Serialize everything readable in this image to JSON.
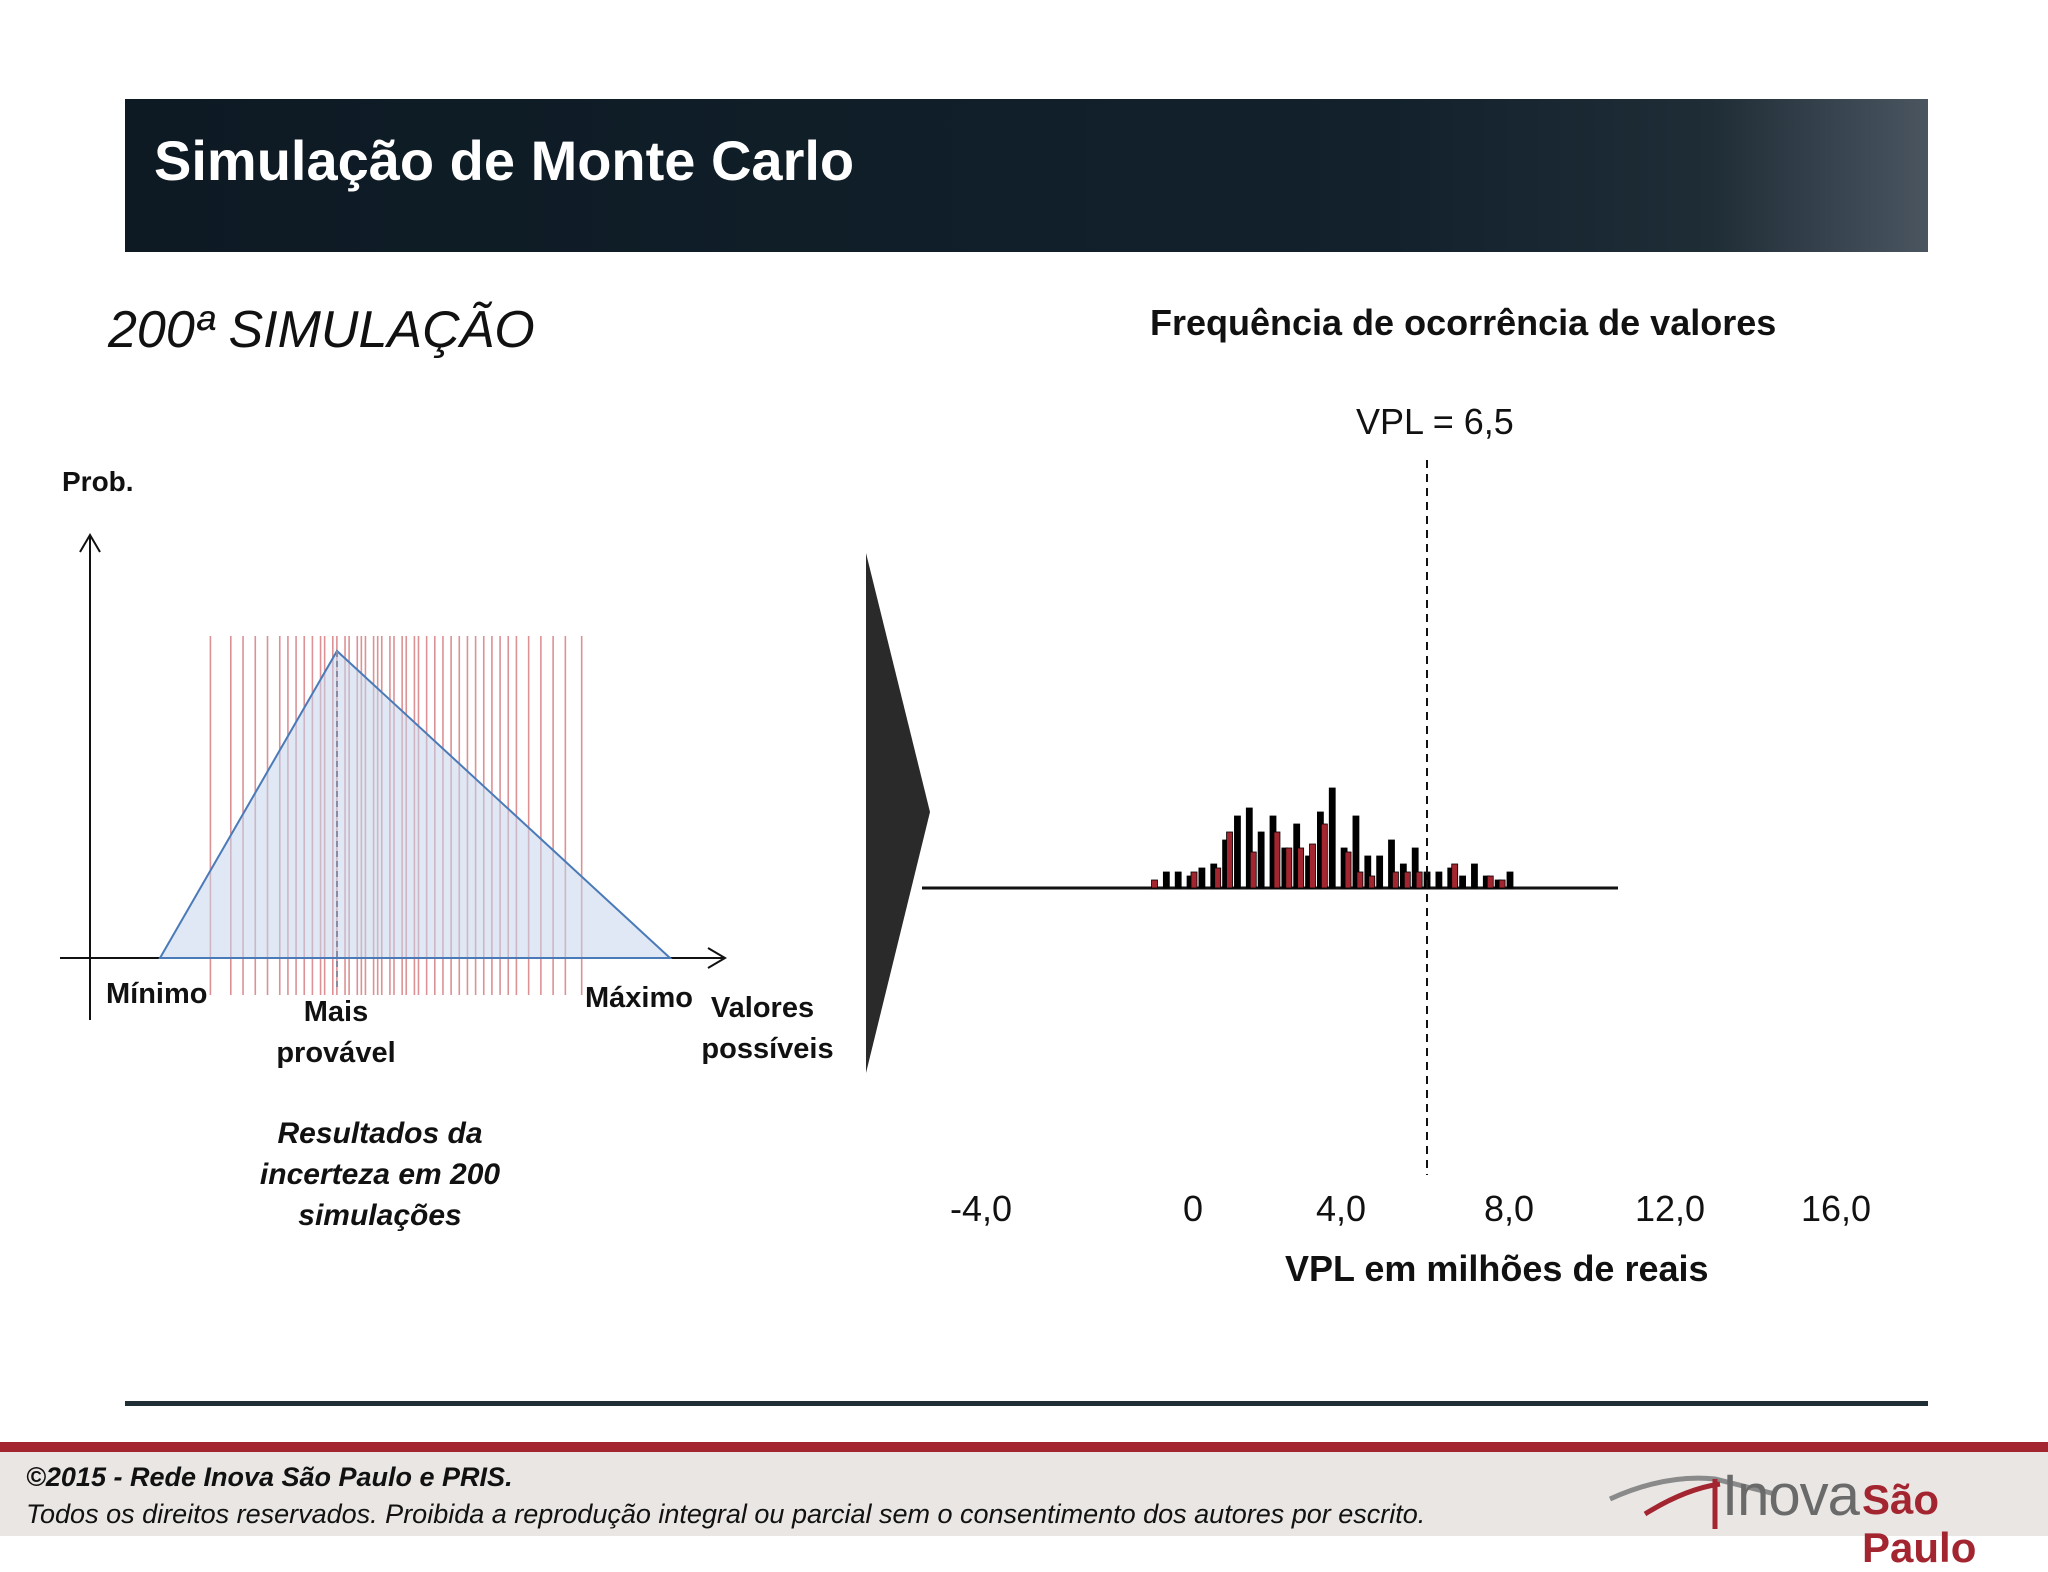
{
  "header": {
    "title": "Simulação de Monte Carlo"
  },
  "left_panel": {
    "heading": "200ª SIMULAÇÃO",
    "y_label": "Prob.",
    "min_label": "Mínimo",
    "mode_label_1": "Mais",
    "mode_label_2": "provável",
    "max_label": "Máximo",
    "x_label_1": "Valores",
    "x_label_2": "possíveis",
    "caption_1": "Resultados da",
    "caption_2": "incerteza em 200",
    "caption_3": "simulações"
  },
  "histogram": {
    "title": "Frequência de ocorrência de valores",
    "marker_label": "VPL = 6,5",
    "x_title": "VPL em milhões de reais",
    "x_ticks": [
      "-4,0",
      "0",
      "4,0",
      "8,0",
      "12,0",
      "16,0"
    ]
  },
  "chart_data": {
    "type": "bar",
    "title": "Frequência de ocorrência de valores",
    "xlabel": "VPL em milhões de reais",
    "ylabel": "",
    "x_ticks": [
      -4,
      0,
      4,
      8,
      12,
      16
    ],
    "marker": {
      "label": "VPL = 6,5",
      "x": 6.5
    },
    "series": [
      {
        "color": "#000000",
        "x": [
          -0.7,
          -0.4,
          -0.1,
          0.2,
          0.5,
          0.8,
          1.1,
          1.4,
          1.7,
          2.0,
          2.3,
          2.6,
          2.9,
          3.2,
          3.5,
          3.8,
          4.1,
          4.4,
          4.7,
          5.0,
          5.3,
          5.6,
          5.9,
          6.2,
          6.5,
          6.8,
          7.1,
          7.4,
          7.7,
          8.0
        ],
        "freq": [
          4,
          4,
          3,
          5,
          6,
          12,
          18,
          20,
          14,
          18,
          10,
          16,
          8,
          19,
          25,
          10,
          18,
          8,
          8,
          12,
          6,
          10,
          4,
          4,
          5,
          3,
          6,
          3,
          2,
          4
        ]
      },
      {
        "color": "#a3252f",
        "x": [
          -1.0,
          0.0,
          0.6,
          0.9,
          1.5,
          2.1,
          2.4,
          2.7,
          3.0,
          3.3,
          3.9,
          4.2,
          4.5,
          5.1,
          5.4,
          5.7,
          6.6,
          7.5,
          7.8
        ],
        "freq": [
          2,
          4,
          5,
          14,
          9,
          14,
          10,
          10,
          11,
          16,
          9,
          4,
          3,
          4,
          4,
          4,
          6,
          3,
          2
        ]
      }
    ]
  },
  "triangle_samples": {
    "min": 0,
    "mode": 0.42,
    "max": 1,
    "samples": [
      0.05,
      0.1,
      0.13,
      0.16,
      0.19,
      0.22,
      0.24,
      0.26,
      0.28,
      0.3,
      0.32,
      0.33,
      0.35,
      0.36,
      0.38,
      0.39,
      0.41,
      0.42,
      0.43,
      0.45,
      0.46,
      0.47,
      0.49,
      0.5,
      0.52,
      0.53,
      0.55,
      0.56,
      0.58,
      0.6,
      0.62,
      0.64,
      0.66,
      0.68,
      0.7,
      0.72,
      0.74,
      0.76,
      0.78,
      0.8,
      0.83,
      0.86,
      0.89,
      0.92,
      0.96
    ]
  },
  "footer": {
    "copyright": "©2015 - Rede Inova São Paulo e PRIS.",
    "rights": "Todos os direitos reservados. Proibida a reprodução integral ou parcial sem o consentimento dos autores por escrito.",
    "logo_word_1": "Inova",
    "logo_word_2": "São Paulo"
  }
}
